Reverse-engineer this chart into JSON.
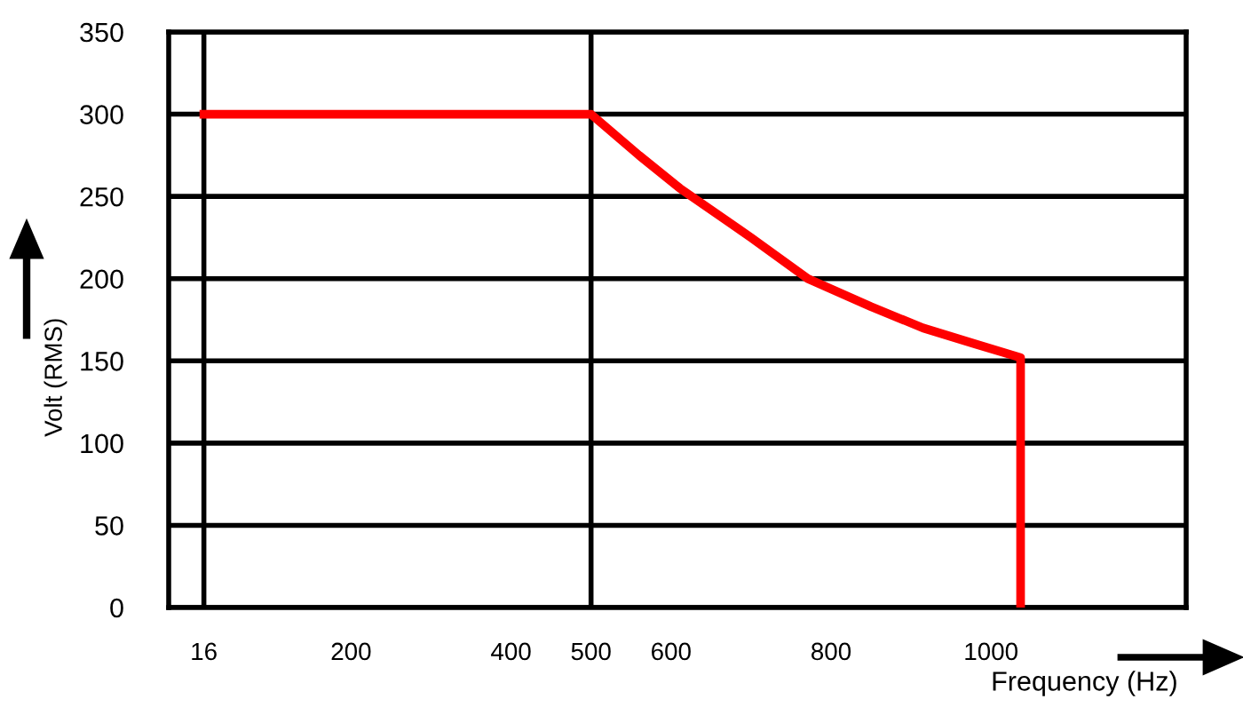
{
  "chart_data": {
    "type": "line",
    "xlabel": "Frequency (Hz)",
    "ylabel": "Volt (RMS)",
    "series": [
      {
        "color": "#ff0000",
        "x": [
          16,
          500,
          560,
          611,
          700,
          771,
          850,
          915,
          982,
          1037,
          1037
        ],
        "values": [
          300,
          300,
          275,
          255,
          225,
          200,
          183,
          170,
          160,
          152,
          0
        ]
      }
    ],
    "xlim": [
      -28,
      1244
    ],
    "ylim": [
      0,
      350
    ],
    "xticks": [
      16,
      200,
      400,
      500,
      600,
      800,
      1000
    ],
    "yticks": [
      0,
      50,
      100,
      150,
      200,
      250,
      300,
      350
    ],
    "grid": "y",
    "ref_lines": [
      {
        "axis": "x",
        "value": 16,
        "color": "#000000"
      },
      {
        "axis": "x",
        "value": 500,
        "color": "#000000"
      }
    ],
    "marker": "none",
    "line_style": "solid"
  }
}
